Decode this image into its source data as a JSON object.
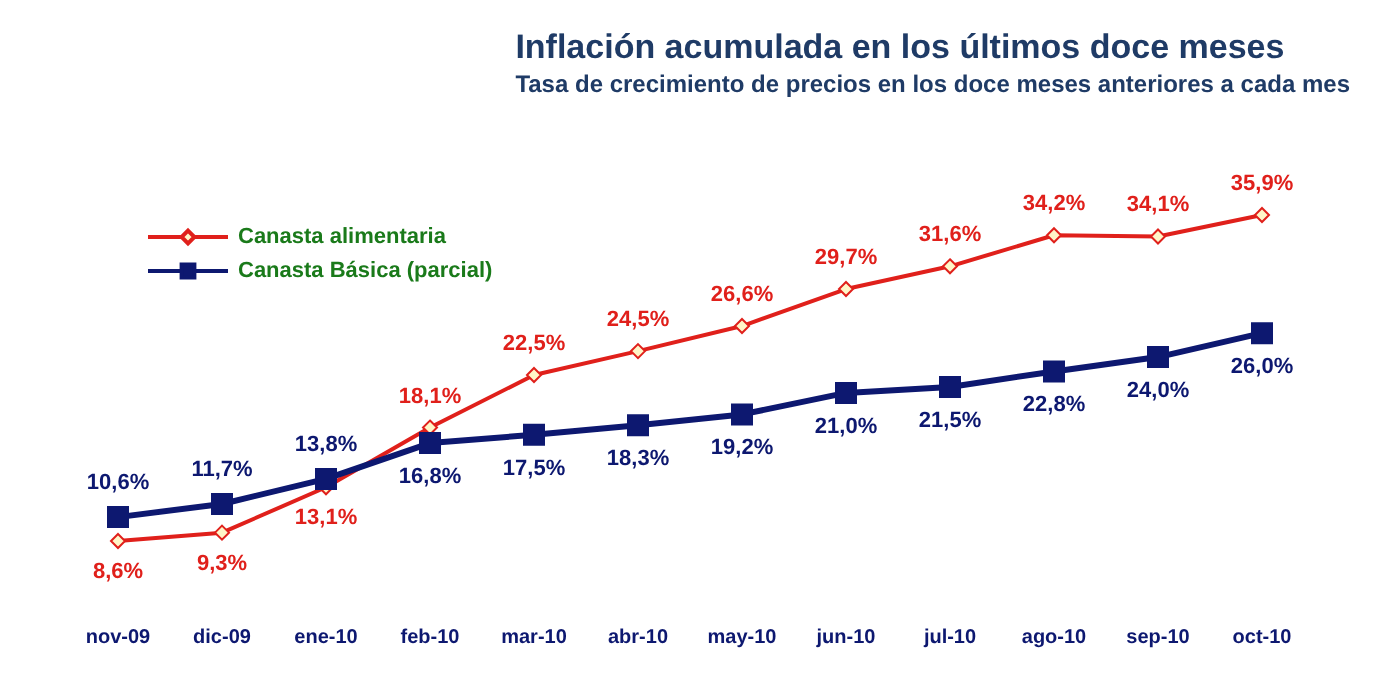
{
  "chart_data": {
    "type": "line",
    "title": "Inflación acumulada en los últimos doce meses",
    "subtitle": "Tasa de crecimiento de precios en los doce meses anteriores a cada mes",
    "categories": [
      "nov-09",
      "dic-09",
      "ene-10",
      "feb-10",
      "mar-10",
      "abr-10",
      "may-10",
      "jun-10",
      "jul-10",
      "ago-10",
      "sep-10",
      "oct-10"
    ],
    "series": [
      {
        "name": "Canasta alimentaria",
        "color": "#e0201b",
        "marker": "diamond",
        "values": [
          8.6,
          9.3,
          13.1,
          18.1,
          22.5,
          24.5,
          26.6,
          29.7,
          31.6,
          34.2,
          34.1,
          35.9
        ],
        "value_labels": [
          "8,6%",
          "9,3%",
          "13,1%",
          "18,1%",
          "22,5%",
          "24,5%",
          "26,6%",
          "29,7%",
          "31,6%",
          "34,2%",
          "34,1%",
          "35,9%"
        ]
      },
      {
        "name": "Canasta Básica (parcial)",
        "color": "#0d1870",
        "marker": "square",
        "values": [
          10.6,
          11.7,
          13.8,
          16.8,
          17.5,
          18.3,
          19.2,
          21.0,
          21.5,
          22.8,
          24.0,
          26.0
        ],
        "value_labels": [
          "10,6%",
          "11,7%",
          "13,8%",
          "16,8%",
          "17,5%",
          "18,3%",
          "19,2%",
          "21,0%",
          "21,5%",
          "22,8%",
          "24,0%",
          "26,0%"
        ]
      }
    ],
    "legend": "top left",
    "grid": false
  }
}
